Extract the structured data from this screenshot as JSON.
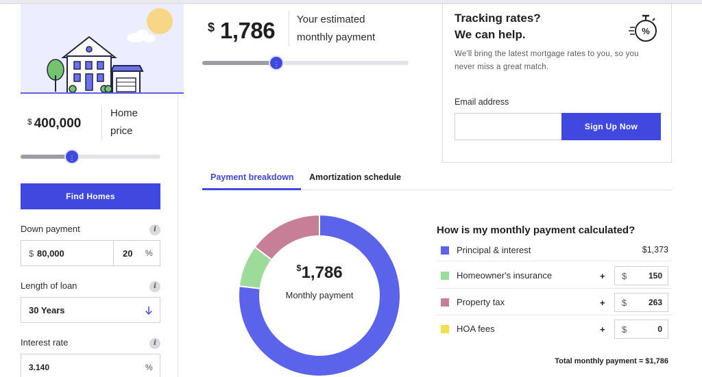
{
  "home_price": {
    "currency": "$",
    "value": "400,000",
    "label_line1": "Home",
    "label_line2": "price",
    "slider_fraction": 0.37
  },
  "find_homes_label": "Find Homes",
  "down_payment": {
    "label": "Down payment",
    "currency": "$",
    "amount": "80,000",
    "percent": "20",
    "percent_sign": "%"
  },
  "loan_length": {
    "label": "Length of loan",
    "value": "30 Years"
  },
  "interest_rate": {
    "label": "Interest rate",
    "value": "3.140",
    "percent_sign": "%"
  },
  "info_glyph": "i",
  "estimate": {
    "currency": "$",
    "value": "1,786",
    "label_line1": "Your estimated",
    "label_line2": "monthly payment",
    "slider_fraction": 0.36
  },
  "tracking": {
    "title_line1": "Tracking rates?",
    "title_line2": "We can help.",
    "desc_line1": "We'll bring the latest mortgage rates to you, so you",
    "desc_line2": "never miss a great match.",
    "email_label": "Email address",
    "email_value": "",
    "signup_label": "Sign Up Now",
    "icon_glyph": "%"
  },
  "tabs": [
    {
      "label": "Payment breakdown",
      "active": true
    },
    {
      "label": "Amortization schedule",
      "active": false
    }
  ],
  "donut": {
    "currency": "$",
    "value": "1,786",
    "label": "Monthly payment"
  },
  "breakdown": {
    "title": "How is my monthly payment calculated?",
    "rows": [
      {
        "label": "Principal & interest",
        "value": "$1,373",
        "amount": 1373,
        "color": "#5b63ea",
        "editable": false
      },
      {
        "label": "Homeowner's insurance",
        "plus": "+",
        "currency": "$",
        "value": "150",
        "amount": 150,
        "color": "#9ddb9b",
        "editable": true
      },
      {
        "label": "Property tax",
        "plus": "+",
        "currency": "$",
        "value": "263",
        "amount": 263,
        "color": "#c77f98",
        "editable": true
      },
      {
        "label": "HOA fees",
        "plus": "+",
        "currency": "$",
        "value": "0",
        "amount": 0,
        "color": "#f2df4e",
        "editable": true
      }
    ],
    "total_label": "Total monthly payment = $1,786"
  },
  "colors": {
    "accent": "#4048e0",
    "principal": "#5b63ea",
    "insurance": "#9ddb9b",
    "tax": "#c77f98",
    "hoa": "#f2df4e"
  }
}
